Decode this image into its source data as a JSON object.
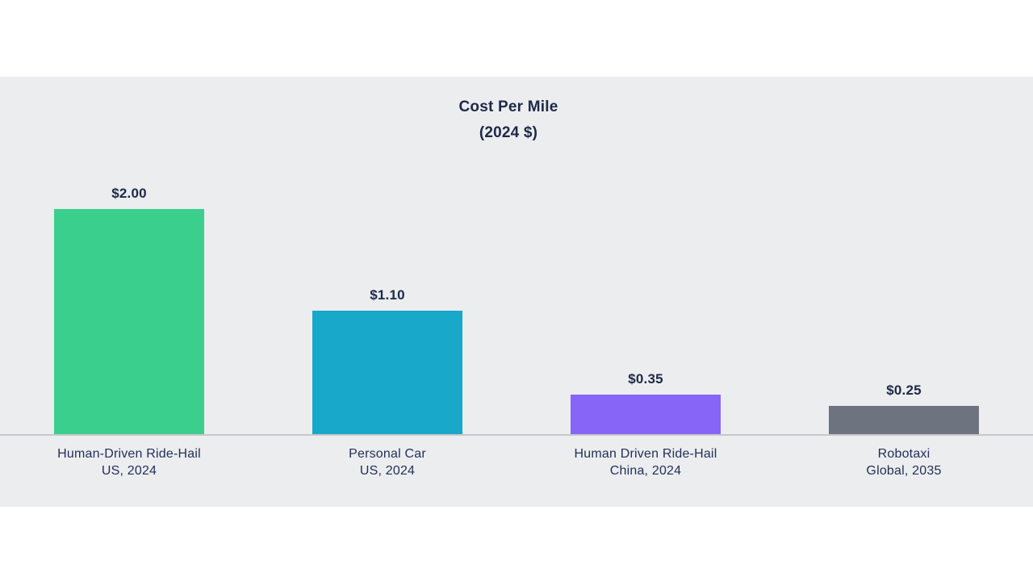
{
  "chart_data": {
    "type": "bar",
    "title": "Cost Per Mile",
    "subtitle": "(2024 $)",
    "categories": [
      "Human-Driven Ride-Hail\nUS, 2024",
      "Personal Car\nUS, 2024",
      "Human Driven Ride-Hail\nChina, 2024",
      "Robotaxi\nGlobal, 2035"
    ],
    "values": [
      2.0,
      1.1,
      0.35,
      0.25
    ],
    "value_labels": [
      "$2.00",
      "$1.10",
      "$0.35",
      "$0.25"
    ],
    "bar_colors": [
      "#3bcf8e",
      "#17a8ca",
      "#8765f6",
      "#6e7380"
    ],
    "xlabel": "",
    "ylabel": "",
    "ylim": [
      0,
      2.0
    ],
    "grid": false,
    "legend": false,
    "layout": {
      "panel_background": "#ecedef",
      "page_background": "#ffffff",
      "text_color": "#1d2947",
      "baseline_color": "#c7c8cb"
    }
  }
}
